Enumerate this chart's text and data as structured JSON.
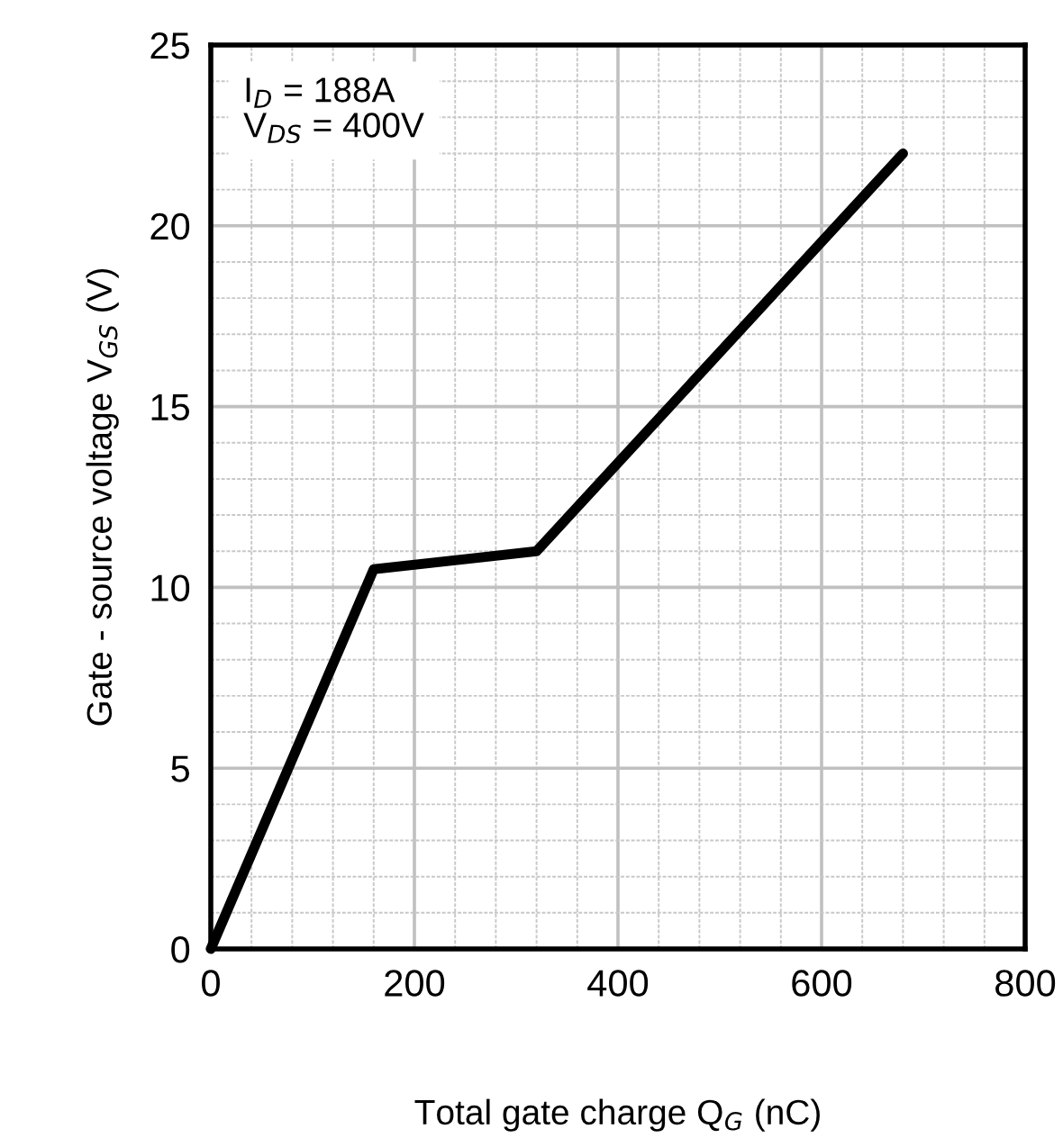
{
  "chart_data": {
    "type": "line",
    "xlabel": "Total gate charge Q$_{G}$ (nC)",
    "ylabel": "Gate - source voltage V$_{GS}$ (V)",
    "annotations": [
      "I$_{D}$ = 188A\nV$_{DS}$ = 400V"
    ],
    "series": [
      {
        "color": "#000000",
        "x": [
          0,
          160,
          320,
          680
        ],
        "values": [
          0,
          10.5,
          11,
          22
        ]
      }
    ],
    "xlim": [
      0,
      800
    ],
    "ylim": [
      0,
      25
    ],
    "xticks": [
      0,
      200,
      400,
      600,
      800
    ],
    "yticks": [
      0,
      5,
      10,
      15,
      20,
      25
    ],
    "grid": true,
    "marker": "none",
    "line_style": "solid"
  }
}
